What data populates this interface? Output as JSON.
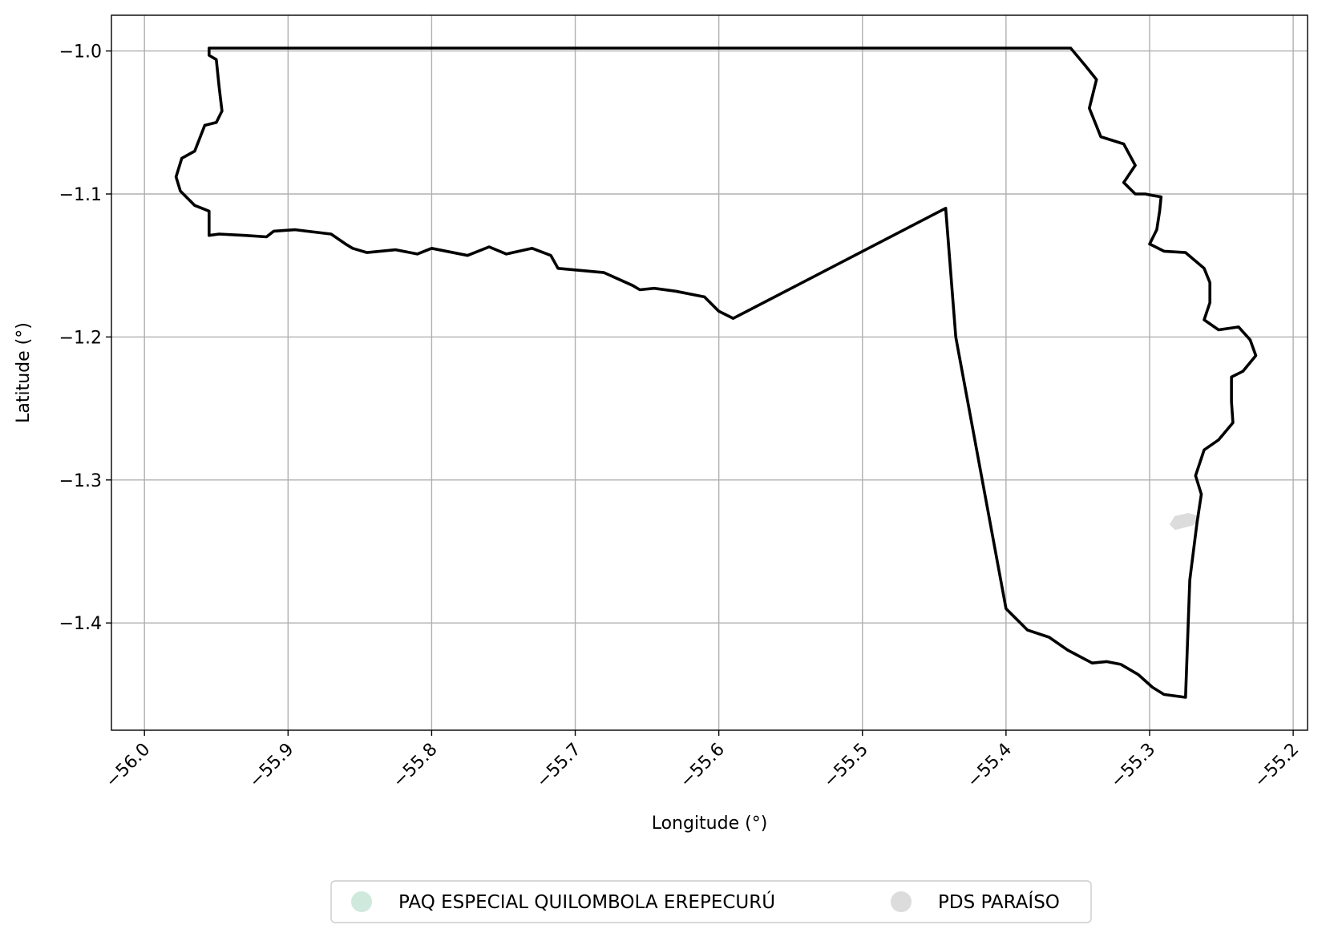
{
  "chart_data": {
    "type": "map",
    "xlabel": "Longitude (°)",
    "ylabel": "Latitude (°)",
    "xlim": [
      -56.023,
      -55.19
    ],
    "ylim": [
      -1.475,
      -0.975
    ],
    "grid": true,
    "xticks": [
      {
        "value": -56.0,
        "label": "−56.0"
      },
      {
        "value": -55.9,
        "label": "−55.9"
      },
      {
        "value": -55.8,
        "label": "−55.8"
      },
      {
        "value": -55.7,
        "label": "−55.7"
      },
      {
        "value": -55.6,
        "label": "−55.6"
      },
      {
        "value": -55.5,
        "label": "−55.5"
      },
      {
        "value": -55.4,
        "label": "−55.4"
      },
      {
        "value": -55.3,
        "label": "−55.3"
      },
      {
        "value": -55.2,
        "label": "−55.2"
      }
    ],
    "yticks": [
      {
        "value": -1.0,
        "label": "−1.0"
      },
      {
        "value": -1.1,
        "label": "−1.1"
      },
      {
        "value": -1.2,
        "label": "−1.2"
      },
      {
        "value": -1.3,
        "label": "−1.3"
      },
      {
        "value": -1.4,
        "label": "−1.4"
      }
    ],
    "legend": {
      "placement": "bottom-center",
      "entries": [
        {
          "label": "PAQ ESPECIAL QUILOMBOLA EREPECURÚ",
          "color": "#cfe9dc"
        },
        {
          "label": "PDS PARAÍSO",
          "color": "#dcdcdc"
        }
      ]
    },
    "boundary": {
      "color": "#000000",
      "coordinates": [
        [
          -55.955,
          -0.998
        ],
        [
          -55.355,
          -0.998
        ],
        [
          -55.345,
          -1.01
        ],
        [
          -55.337,
          -1.02
        ],
        [
          -55.342,
          -1.04
        ],
        [
          -55.334,
          -1.06
        ],
        [
          -55.318,
          -1.065
        ],
        [
          -55.31,
          -1.08
        ],
        [
          -55.318,
          -1.092
        ],
        [
          -55.31,
          -1.1
        ],
        [
          -55.303,
          -1.1
        ],
        [
          -55.298,
          -1.101
        ],
        [
          -55.292,
          -1.102
        ],
        [
          -55.293,
          -1.112
        ],
        [
          -55.295,
          -1.125
        ],
        [
          -55.3,
          -1.135
        ],
        [
          -55.29,
          -1.14
        ],
        [
          -55.275,
          -1.141
        ],
        [
          -55.262,
          -1.152
        ],
        [
          -55.258,
          -1.162
        ],
        [
          -55.258,
          -1.176
        ],
        [
          -55.262,
          -1.188
        ],
        [
          -55.252,
          -1.195
        ],
        [
          -55.238,
          -1.193
        ],
        [
          -55.23,
          -1.202
        ],
        [
          -55.226,
          -1.213
        ],
        [
          -55.235,
          -1.224
        ],
        [
          -55.243,
          -1.228
        ],
        [
          -55.243,
          -1.245
        ],
        [
          -55.242,
          -1.26
        ],
        [
          -55.252,
          -1.272
        ],
        [
          -55.262,
          -1.279
        ],
        [
          -55.268,
          -1.297
        ],
        [
          -55.264,
          -1.31
        ],
        [
          -55.267,
          -1.33
        ],
        [
          -55.272,
          -1.37
        ],
        [
          -55.275,
          -1.452
        ],
        [
          -55.29,
          -1.45
        ],
        [
          -55.298,
          -1.445
        ],
        [
          -55.308,
          -1.436
        ],
        [
          -55.32,
          -1.429
        ],
        [
          -55.33,
          -1.427
        ],
        [
          -55.34,
          -1.428
        ],
        [
          -55.357,
          -1.419
        ],
        [
          -55.37,
          -1.41
        ],
        [
          -55.385,
          -1.405
        ],
        [
          -55.4,
          -1.39
        ],
        [
          -55.435,
          -1.2
        ],
        [
          -55.442,
          -1.11
        ],
        [
          -55.59,
          -1.187
        ],
        [
          -55.6,
          -1.182
        ],
        [
          -55.61,
          -1.172
        ],
        [
          -55.63,
          -1.168
        ],
        [
          -55.645,
          -1.166
        ],
        [
          -55.655,
          -1.167
        ],
        [
          -55.66,
          -1.164
        ],
        [
          -55.68,
          -1.155
        ],
        [
          -55.712,
          -1.152
        ],
        [
          -55.717,
          -1.143
        ],
        [
          -55.73,
          -1.138
        ],
        [
          -55.748,
          -1.142
        ],
        [
          -55.76,
          -1.137
        ],
        [
          -55.775,
          -1.143
        ],
        [
          -55.8,
          -1.138
        ],
        [
          -55.81,
          -1.142
        ],
        [
          -55.825,
          -1.139
        ],
        [
          -55.845,
          -1.141
        ],
        [
          -55.855,
          -1.138
        ],
        [
          -55.86,
          -1.135
        ],
        [
          -55.87,
          -1.128
        ],
        [
          -55.895,
          -1.125
        ],
        [
          -55.91,
          -1.126
        ],
        [
          -55.915,
          -1.13
        ],
        [
          -55.93,
          -1.129
        ],
        [
          -55.948,
          -1.128
        ],
        [
          -55.955,
          -1.129
        ],
        [
          -55.955,
          -1.112
        ],
        [
          -55.965,
          -1.108
        ],
        [
          -55.975,
          -1.098
        ],
        [
          -55.978,
          -1.088
        ],
        [
          -55.974,
          -1.075
        ],
        [
          -55.965,
          -1.07
        ],
        [
          -55.958,
          -1.052
        ],
        [
          -55.95,
          -1.05
        ],
        [
          -55.946,
          -1.042
        ],
        [
          -55.948,
          -1.025
        ],
        [
          -55.95,
          -1.006
        ],
        [
          -55.955,
          -1.003
        ],
        [
          -55.955,
          -0.998
        ]
      ]
    },
    "areas": [
      {
        "legend_label": "PDS PARAÍSO",
        "color": "#dcdcdc",
        "coordinates": [
          [
            -55.282,
            -1.334
          ],
          [
            -55.27,
            -1.331
          ],
          [
            -55.266,
            -1.326
          ],
          [
            -55.273,
            -1.324
          ],
          [
            -55.282,
            -1.326
          ],
          [
            -55.285,
            -1.331
          ]
        ]
      }
    ]
  }
}
